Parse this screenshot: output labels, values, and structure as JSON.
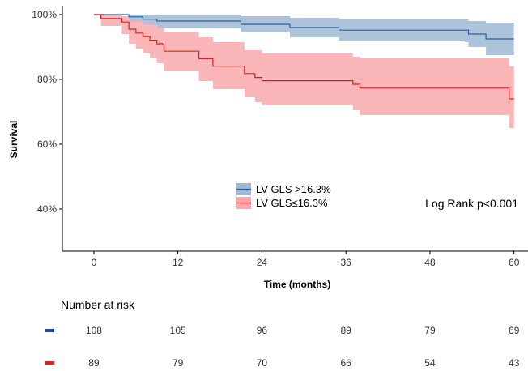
{
  "chart_data": {
    "type": "line",
    "subtype": "kaplan-meier",
    "title": "",
    "xlabel": "Time (months)",
    "ylabel": "Survival",
    "xlim": [
      -4.5,
      62
    ],
    "ylim": [
      0.27,
      1.025
    ],
    "x_ticks": [
      0,
      12,
      24,
      36,
      48,
      60
    ],
    "y_ticks": [
      {
        "value": 0.4,
        "label": "40%"
      },
      {
        "value": 0.6,
        "label": "60%"
      },
      {
        "value": 0.8,
        "label": "80%"
      },
      {
        "value": 1.0,
        "label": "100%"
      }
    ],
    "grid": false,
    "legend_position": "center",
    "annotation": "Log Rank p<0.001",
    "series": [
      {
        "name": "LV GLS >16.3%",
        "color": "#2E5FA8",
        "band_color": "#9DB9D3",
        "steps": [
          [
            0,
            1.0
          ],
          [
            5,
            0.993
          ],
          [
            7,
            0.986
          ],
          [
            9,
            0.98
          ],
          [
            18,
            0.98
          ],
          [
            21,
            0.97
          ],
          [
            28,
            0.96
          ],
          [
            35,
            0.952
          ],
          [
            53,
            0.952
          ],
          [
            53.5,
            0.94
          ],
          [
            56,
            0.925
          ],
          [
            60,
            0.925
          ]
        ],
        "lower": [
          [
            0,
            1.0
          ],
          [
            5,
            0.978
          ],
          [
            7,
            0.968
          ],
          [
            9,
            0.958
          ],
          [
            18,
            0.958
          ],
          [
            21,
            0.946
          ],
          [
            28,
            0.93
          ],
          [
            35,
            0.92
          ],
          [
            53,
            0.915
          ],
          [
            53.5,
            0.9
          ],
          [
            56,
            0.875
          ],
          [
            60,
            0.875
          ]
        ],
        "upper": [
          [
            0,
            1.0
          ],
          [
            5,
            1.0
          ],
          [
            21,
            0.995
          ],
          [
            28,
            0.99
          ],
          [
            35,
            0.985
          ],
          [
            53,
            0.985
          ],
          [
            53.5,
            0.98
          ],
          [
            56,
            0.975
          ],
          [
            60,
            0.975
          ]
        ]
      },
      {
        "name": "LV GLS≤16.3%",
        "color": "#E0201E",
        "band_color": "#F9A9AC",
        "steps": [
          [
            0,
            1.0
          ],
          [
            1,
            0.988
          ],
          [
            4,
            0.977
          ],
          [
            5,
            0.955
          ],
          [
            6,
            0.943
          ],
          [
            7,
            0.932
          ],
          [
            8,
            0.921
          ],
          [
            9,
            0.91
          ],
          [
            10,
            0.887
          ],
          [
            14,
            0.887
          ],
          [
            15,
            0.864
          ],
          [
            17,
            0.841
          ],
          [
            21,
            0.841
          ],
          [
            21.5,
            0.818
          ],
          [
            23,
            0.806
          ],
          [
            24,
            0.796
          ],
          [
            37,
            0.785
          ],
          [
            38,
            0.773
          ],
          [
            59,
            0.773
          ],
          [
            59.3,
            0.74
          ],
          [
            60,
            0.74
          ]
        ],
        "lower": [
          [
            0,
            1.0
          ],
          [
            1,
            0.965
          ],
          [
            4,
            0.94
          ],
          [
            5,
            0.91
          ],
          [
            6,
            0.895
          ],
          [
            7,
            0.88
          ],
          [
            8,
            0.865
          ],
          [
            9,
            0.85
          ],
          [
            10,
            0.825
          ],
          [
            15,
            0.795
          ],
          [
            17,
            0.77
          ],
          [
            21.5,
            0.745
          ],
          [
            23,
            0.73
          ],
          [
            24,
            0.72
          ],
          [
            37,
            0.705
          ],
          [
            38,
            0.69
          ],
          [
            59,
            0.69
          ],
          [
            59.3,
            0.65
          ],
          [
            60,
            0.65
          ]
        ],
        "upper": [
          [
            0,
            1.0
          ],
          [
            1,
            1.0
          ],
          [
            4,
            0.995
          ],
          [
            5,
            0.98
          ],
          [
            7,
            0.97
          ],
          [
            9,
            0.96
          ],
          [
            10,
            0.945
          ],
          [
            15,
            0.93
          ],
          [
            17,
            0.915
          ],
          [
            21.5,
            0.89
          ],
          [
            24,
            0.88
          ],
          [
            37,
            0.87
          ],
          [
            38,
            0.865
          ],
          [
            59,
            0.865
          ],
          [
            59.3,
            0.84
          ],
          [
            60,
            0.84
          ]
        ]
      }
    ]
  },
  "risk_table": {
    "title": "Number at risk",
    "times": [
      0,
      12,
      24,
      36,
      48,
      60
    ],
    "rows": [
      {
        "name": "LV GLS >16.3%",
        "color": "#1F4E9E",
        "values": [
          "108",
          "105",
          "96",
          "89",
          "79",
          "69"
        ]
      },
      {
        "name": "LV GLS≤16.3%",
        "color": "#E0201E",
        "values": [
          "89",
          "79",
          "70",
          "66",
          "54",
          "43"
        ]
      }
    ]
  }
}
